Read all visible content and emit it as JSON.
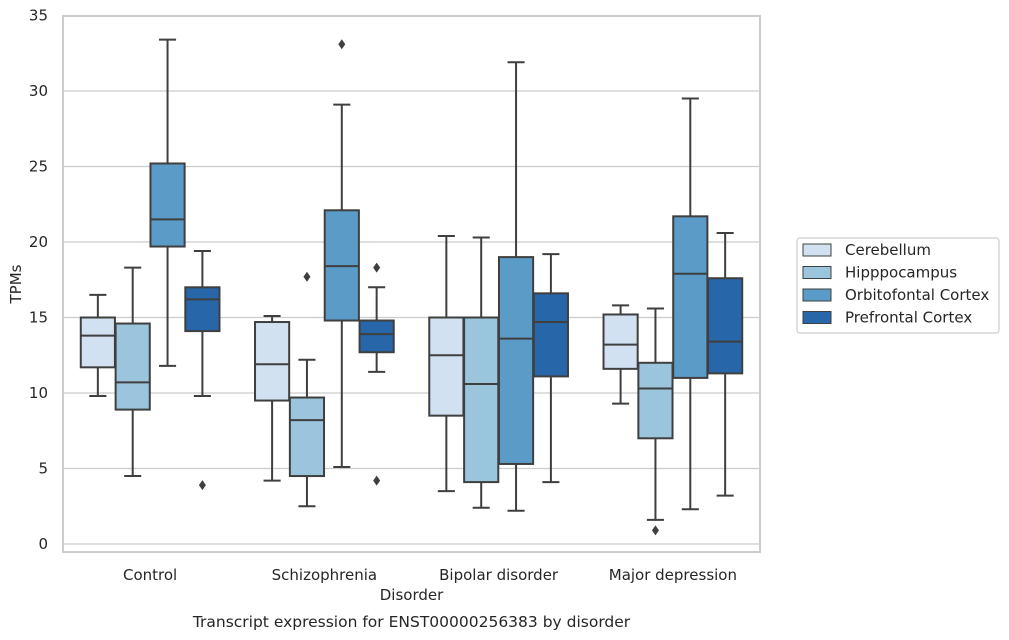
{
  "chart_data": {
    "type": "boxplot",
    "title": "",
    "caption": "Transcript expression for ENST00000256383 by disorder",
    "xlabel": "Disorder",
    "ylabel": "TPMs",
    "ylim": [
      -0.5,
      35
    ],
    "yticks": [
      0,
      5,
      10,
      15,
      20,
      25,
      30,
      35
    ],
    "grid": "horizontal",
    "legend_position": "right",
    "categories": [
      "Control",
      "Schizophrenia",
      "Bipolar disorder",
      "Major depression"
    ],
    "series": [
      {
        "name": "Cerebellum",
        "color": "#d1e1f1",
        "boxes": [
          {
            "whisker_low": 9.8,
            "q1": 11.7,
            "median": 13.8,
            "q3": 15.0,
            "whisker_high": 16.5,
            "outliers": []
          },
          {
            "whisker_low": 4.2,
            "q1": 9.5,
            "median": 11.9,
            "q3": 14.7,
            "whisker_high": 15.1,
            "outliers": []
          },
          {
            "whisker_low": 3.5,
            "q1": 8.5,
            "median": 12.5,
            "q3": 15.0,
            "whisker_high": 20.4,
            "outliers": []
          },
          {
            "whisker_low": 9.3,
            "q1": 11.6,
            "median": 13.2,
            "q3": 15.2,
            "whisker_high": 15.8,
            "outliers": []
          }
        ]
      },
      {
        "name": "Hipppocampus",
        "color": "#9bc5dd",
        "boxes": [
          {
            "whisker_low": 4.5,
            "q1": 8.9,
            "median": 10.7,
            "q3": 14.6,
            "whisker_high": 18.3,
            "outliers": []
          },
          {
            "whisker_low": 2.5,
            "q1": 4.5,
            "median": 8.2,
            "q3": 9.7,
            "whisker_high": 12.2,
            "outliers": [
              17.7
            ]
          },
          {
            "whisker_low": 2.4,
            "q1": 4.1,
            "median": 10.6,
            "q3": 15.0,
            "whisker_high": 20.3,
            "outliers": []
          },
          {
            "whisker_low": 1.6,
            "q1": 7.0,
            "median": 10.3,
            "q3": 12.0,
            "whisker_high": 15.6,
            "outliers": [
              0.9
            ]
          }
        ]
      },
      {
        "name": "Orbitofontal Cortex",
        "color": "#5b9bc7",
        "boxes": [
          {
            "whisker_low": 11.8,
            "q1": 19.7,
            "median": 21.5,
            "q3": 25.2,
            "whisker_high": 33.4,
            "outliers": []
          },
          {
            "whisker_low": 5.1,
            "q1": 14.8,
            "median": 18.4,
            "q3": 22.1,
            "whisker_high": 29.1,
            "outliers": [
              33.1
            ]
          },
          {
            "whisker_low": 2.2,
            "q1": 5.3,
            "median": 13.6,
            "q3": 19.0,
            "whisker_high": 31.9,
            "outliers": []
          },
          {
            "whisker_low": 2.3,
            "q1": 11.0,
            "median": 17.9,
            "q3": 21.7,
            "whisker_high": 29.5,
            "outliers": []
          }
        ]
      },
      {
        "name": "Prefrontal Cortex",
        "color": "#2766a8",
        "boxes": [
          {
            "whisker_low": 9.8,
            "q1": 14.1,
            "median": 16.2,
            "q3": 17.0,
            "whisker_high": 19.4,
            "outliers": [
              3.9
            ]
          },
          {
            "whisker_low": 11.4,
            "q1": 12.7,
            "median": 13.9,
            "q3": 14.8,
            "whisker_high": 17.0,
            "outliers": [
              18.3,
              4.2
            ]
          },
          {
            "whisker_low": 4.1,
            "q1": 11.1,
            "median": 14.7,
            "q3": 16.6,
            "whisker_high": 19.2,
            "outliers": []
          },
          {
            "whisker_low": 3.2,
            "q1": 11.3,
            "median": 13.4,
            "q3": 17.6,
            "whisker_high": 20.6,
            "outliers": []
          }
        ]
      }
    ]
  }
}
